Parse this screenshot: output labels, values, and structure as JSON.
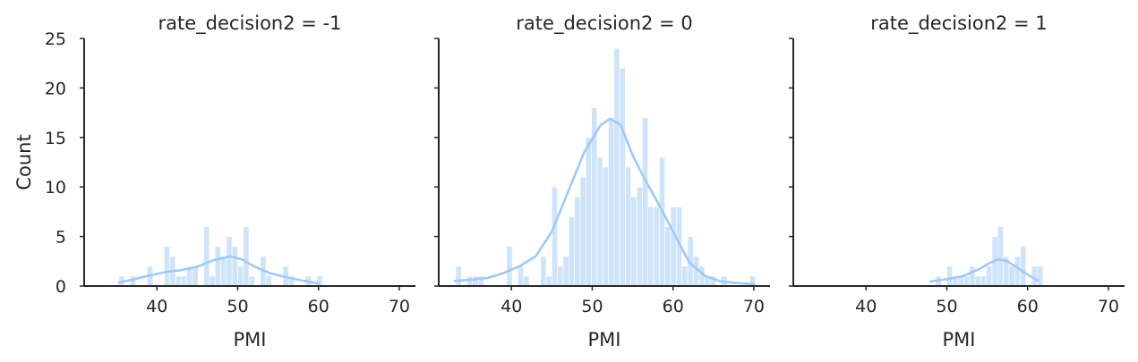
{
  "chart_data": {
    "type": "bar",
    "chart_kind": "faceted histogram with KDE",
    "xlabel": "PMI",
    "ylabel": "Count",
    "xlim": [
      31,
      72
    ],
    "ylim": [
      0,
      25
    ],
    "xticks": [
      40,
      50,
      60,
      70
    ],
    "yticks": [
      0,
      5,
      10,
      15,
      20,
      25
    ],
    "shared_y": true,
    "bin_width": 0.7,
    "color": "#a1c9f4",
    "panels": [
      {
        "title": "rate_decision2 = -1",
        "bins": [
          [
            35.3,
            1
          ],
          [
            36.7,
            1
          ],
          [
            38.8,
            2
          ],
          [
            40.9,
            4
          ],
          [
            41.6,
            3
          ],
          [
            42.3,
            1
          ],
          [
            43.0,
            1
          ],
          [
            43.7,
            2
          ],
          [
            44.4,
            2
          ],
          [
            45.8,
            6
          ],
          [
            46.5,
            1
          ],
          [
            47.2,
            4
          ],
          [
            47.9,
            3
          ],
          [
            48.6,
            5
          ],
          [
            49.3,
            4
          ],
          [
            50.0,
            2
          ],
          [
            50.7,
            6
          ],
          [
            51.4,
            1
          ],
          [
            52.8,
            3
          ],
          [
            53.5,
            1
          ],
          [
            55.6,
            2
          ],
          [
            56.3,
            1
          ],
          [
            58.4,
            1
          ],
          [
            59.8,
            1
          ]
        ],
        "kde": [
          [
            35.3,
            0.35
          ],
          [
            37,
            0.65
          ],
          [
            39,
            1.05
          ],
          [
            41,
            1.4
          ],
          [
            43,
            1.6
          ],
          [
            45,
            1.95
          ],
          [
            47,
            2.6
          ],
          [
            49,
            3.0
          ],
          [
            50.5,
            2.7
          ],
          [
            52,
            2.0
          ],
          [
            54,
            1.3
          ],
          [
            56,
            0.9
          ],
          [
            58,
            0.55
          ],
          [
            60,
            0.25
          ]
        ]
      },
      {
        "title": "rate_decision2 = 0",
        "bins": [
          [
            33.1,
            2
          ],
          [
            34.5,
            1
          ],
          [
            35.2,
            1
          ],
          [
            35.9,
            1
          ],
          [
            39.4,
            4
          ],
          [
            40.8,
            2
          ],
          [
            41.5,
            1
          ],
          [
            43.6,
            3
          ],
          [
            44.3,
            1
          ],
          [
            45.0,
            10
          ],
          [
            45.7,
            2
          ],
          [
            46.4,
            3
          ],
          [
            47.1,
            7
          ],
          [
            47.8,
            9
          ],
          [
            48.5,
            11
          ],
          [
            49.2,
            15
          ],
          [
            49.9,
            18
          ],
          [
            50.6,
            13
          ],
          [
            51.3,
            12
          ],
          [
            52.0,
            17
          ],
          [
            52.7,
            24
          ],
          [
            53.4,
            22
          ],
          [
            54.1,
            12
          ],
          [
            54.8,
            9
          ],
          [
            55.5,
            10
          ],
          [
            56.2,
            17
          ],
          [
            56.9,
            8
          ],
          [
            57.6,
            8
          ],
          [
            58.3,
            13
          ],
          [
            59.0,
            6
          ],
          [
            59.7,
            8
          ],
          [
            60.4,
            8
          ],
          [
            61.1,
            2
          ],
          [
            61.8,
            5
          ],
          [
            62.5,
            3
          ],
          [
            63.2,
            2
          ],
          [
            63.9,
            1
          ],
          [
            64.6,
            1
          ],
          [
            66.0,
            1
          ],
          [
            69.5,
            1
          ]
        ],
        "kde": [
          [
            33,
            0.5
          ],
          [
            35,
            0.65
          ],
          [
            37,
            0.8
          ],
          [
            39,
            1.3
          ],
          [
            41,
            2.0
          ],
          [
            43,
            3.0
          ],
          [
            45,
            5.5
          ],
          [
            47,
            9.5
          ],
          [
            49,
            13.5
          ],
          [
            51,
            16.2
          ],
          [
            52.2,
            16.9
          ],
          [
            53.5,
            16.3
          ],
          [
            55,
            13.2
          ],
          [
            56.5,
            10.8
          ],
          [
            58,
            8.6
          ],
          [
            60,
            5.5
          ],
          [
            62,
            2.4
          ],
          [
            64,
            1.0
          ],
          [
            66,
            0.45
          ],
          [
            68,
            0.3
          ],
          [
            70,
            0.2
          ]
        ]
      },
      {
        "title": "rate_decision2 = 1",
        "bins": [
          [
            48.6,
            1
          ],
          [
            50.0,
            2
          ],
          [
            50.7,
            1
          ],
          [
            51.4,
            1
          ],
          [
            52.1,
            1
          ],
          [
            52.8,
            2
          ],
          [
            53.5,
            1
          ],
          [
            54.2,
            1
          ],
          [
            54.9,
            2
          ],
          [
            55.6,
            5
          ],
          [
            56.3,
            6
          ],
          [
            57.0,
            3
          ],
          [
            57.7,
            2
          ],
          [
            58.4,
            3
          ],
          [
            59.1,
            4
          ],
          [
            60.5,
            2
          ],
          [
            61.2,
            2
          ]
        ],
        "kde": [
          [
            48,
            0.45
          ],
          [
            50,
            0.7
          ],
          [
            52,
            1.0
          ],
          [
            54,
            1.7
          ],
          [
            55.5,
            2.4
          ],
          [
            56.5,
            2.7
          ],
          [
            57.5,
            2.5
          ],
          [
            59,
            1.7
          ],
          [
            60.5,
            0.9
          ],
          [
            61.3,
            0.55
          ]
        ]
      }
    ]
  }
}
